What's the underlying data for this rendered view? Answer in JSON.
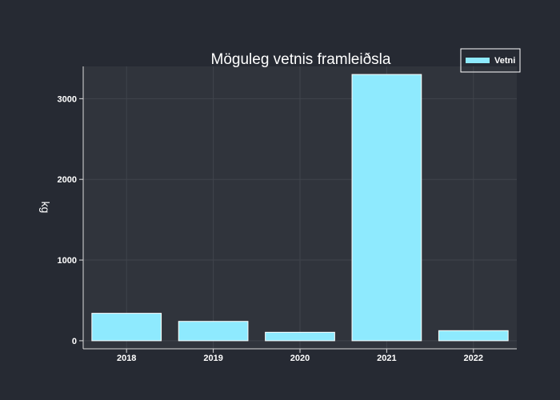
{
  "chart_data": {
    "type": "bar",
    "title": "Möguleg vetnis framleiðsla",
    "xlabel": "",
    "ylabel": "kg",
    "categories": [
      "2018",
      "2019",
      "2020",
      "2021",
      "2022"
    ],
    "series": [
      {
        "name": "Vetni",
        "values": [
          340,
          240,
          105,
          3300,
          125
        ]
      }
    ],
    "ylim": [
      -100,
      3400
    ],
    "yticks": [
      0,
      1000,
      2000,
      3000
    ],
    "grid": true,
    "legend": "top-right"
  },
  "colors": {
    "background": "#262a33",
    "plot_background": "#30343c",
    "grid": "#40444c",
    "axis": "#dddddd",
    "bar_fill": "#8eeafe",
    "bar_stroke": "#ffffff",
    "text": "#ffffff"
  }
}
